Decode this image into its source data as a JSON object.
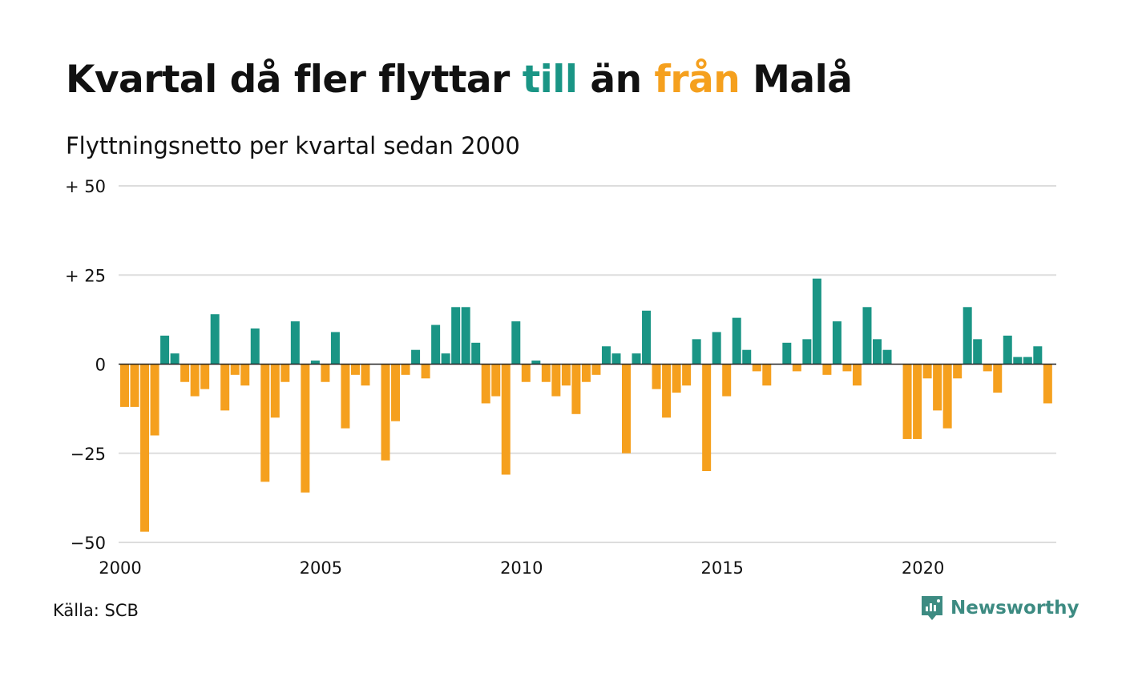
{
  "header": {
    "title_part1": "Kvartal då fler flyttar ",
    "title_till": "till",
    "title_part2": " än ",
    "title_fran": "från",
    "title_part3": " Malå",
    "subtitle": "Flyttningsnetto per kvartal sedan 2000"
  },
  "footer": {
    "source": "Källa: SCB",
    "brand": "Newsworthy"
  },
  "colors": {
    "positive": "#1a9585",
    "negative": "#f5a01e",
    "grid": "#dddddd",
    "brand": "#3d8b82"
  },
  "chart_data": {
    "type": "bar",
    "title": "Kvartal då fler flyttar till än från Malå",
    "subtitle": "Flyttningsnetto per kvartal sedan 2000",
    "xlabel": "",
    "ylabel": "",
    "ylim": [
      -50,
      50
    ],
    "y_ticks": [
      50,
      25,
      0,
      -25,
      -50
    ],
    "y_tick_labels": [
      "+ 50",
      "+ 25",
      "0",
      "−25",
      "−50"
    ],
    "x_ticks": [
      2000,
      2005,
      2010,
      2015,
      2020
    ],
    "x_tick_labels": [
      "2000",
      "2005",
      "2010",
      "2015",
      "2020"
    ],
    "grid": true,
    "categories": [
      "2000K1",
      "2000K2",
      "2000K3",
      "2000K4",
      "2001K1",
      "2001K2",
      "2001K3",
      "2001K4",
      "2002K1",
      "2002K2",
      "2002K3",
      "2002K4",
      "2003K1",
      "2003K2",
      "2003K3",
      "2003K4",
      "2004K1",
      "2004K2",
      "2004K3",
      "2004K4",
      "2005K1",
      "2005K2",
      "2005K3",
      "2005K4",
      "2006K1",
      "2006K2",
      "2006K3",
      "2006K4",
      "2007K1",
      "2007K2",
      "2007K3",
      "2007K4",
      "2008K1",
      "2008K2",
      "2008K3",
      "2008K4",
      "2009K1",
      "2009K2",
      "2009K3",
      "2009K4",
      "2010K1",
      "2010K2",
      "2010K3",
      "2010K4",
      "2011K1",
      "2011K2",
      "2011K3",
      "2011K4",
      "2012K1",
      "2012K2",
      "2012K3",
      "2012K4",
      "2013K1",
      "2013K2",
      "2013K3",
      "2013K4",
      "2014K1",
      "2014K2",
      "2014K3",
      "2014K4",
      "2015K1",
      "2015K2",
      "2015K3",
      "2015K4",
      "2016K1",
      "2016K2",
      "2016K3",
      "2016K4",
      "2017K1",
      "2017K2",
      "2017K3",
      "2017K4",
      "2018K1",
      "2018K2",
      "2018K3",
      "2018K4",
      "2019K1",
      "2019K2",
      "2019K3",
      "2019K4",
      "2020K1",
      "2020K2",
      "2020K3",
      "2020K4",
      "2021K1",
      "2021K2",
      "2021K3",
      "2021K4",
      "2022K1",
      "2022K2",
      "2022K3",
      "2022K4",
      "2023K1"
    ],
    "values": [
      -12,
      -12,
      -47,
      -20,
      8,
      3,
      -5,
      -9,
      -7,
      14,
      -13,
      -3,
      -6,
      10,
      -33,
      -15,
      -5,
      12,
      -36,
      1,
      -5,
      9,
      -18,
      -3,
      -6,
      0,
      -27,
      -16,
      -3,
      4,
      -4,
      11,
      3,
      16,
      16,
      6,
      -11,
      -9,
      -31,
      12,
      -5,
      1,
      -5,
      -9,
      -6,
      -14,
      -5,
      -3,
      5,
      3,
      -25,
      3,
      15,
      -7,
      -15,
      -8,
      -6,
      7,
      -30,
      9,
      -9,
      13,
      4,
      -2,
      -6,
      0,
      6,
      -2,
      7,
      24,
      -3,
      12,
      -2,
      -6,
      16,
      7,
      4,
      0,
      -21,
      -21,
      -4,
      -13,
      -18,
      -4,
      16,
      7,
      -2,
      -8,
      8,
      2,
      2,
      5,
      -11
    ]
  }
}
